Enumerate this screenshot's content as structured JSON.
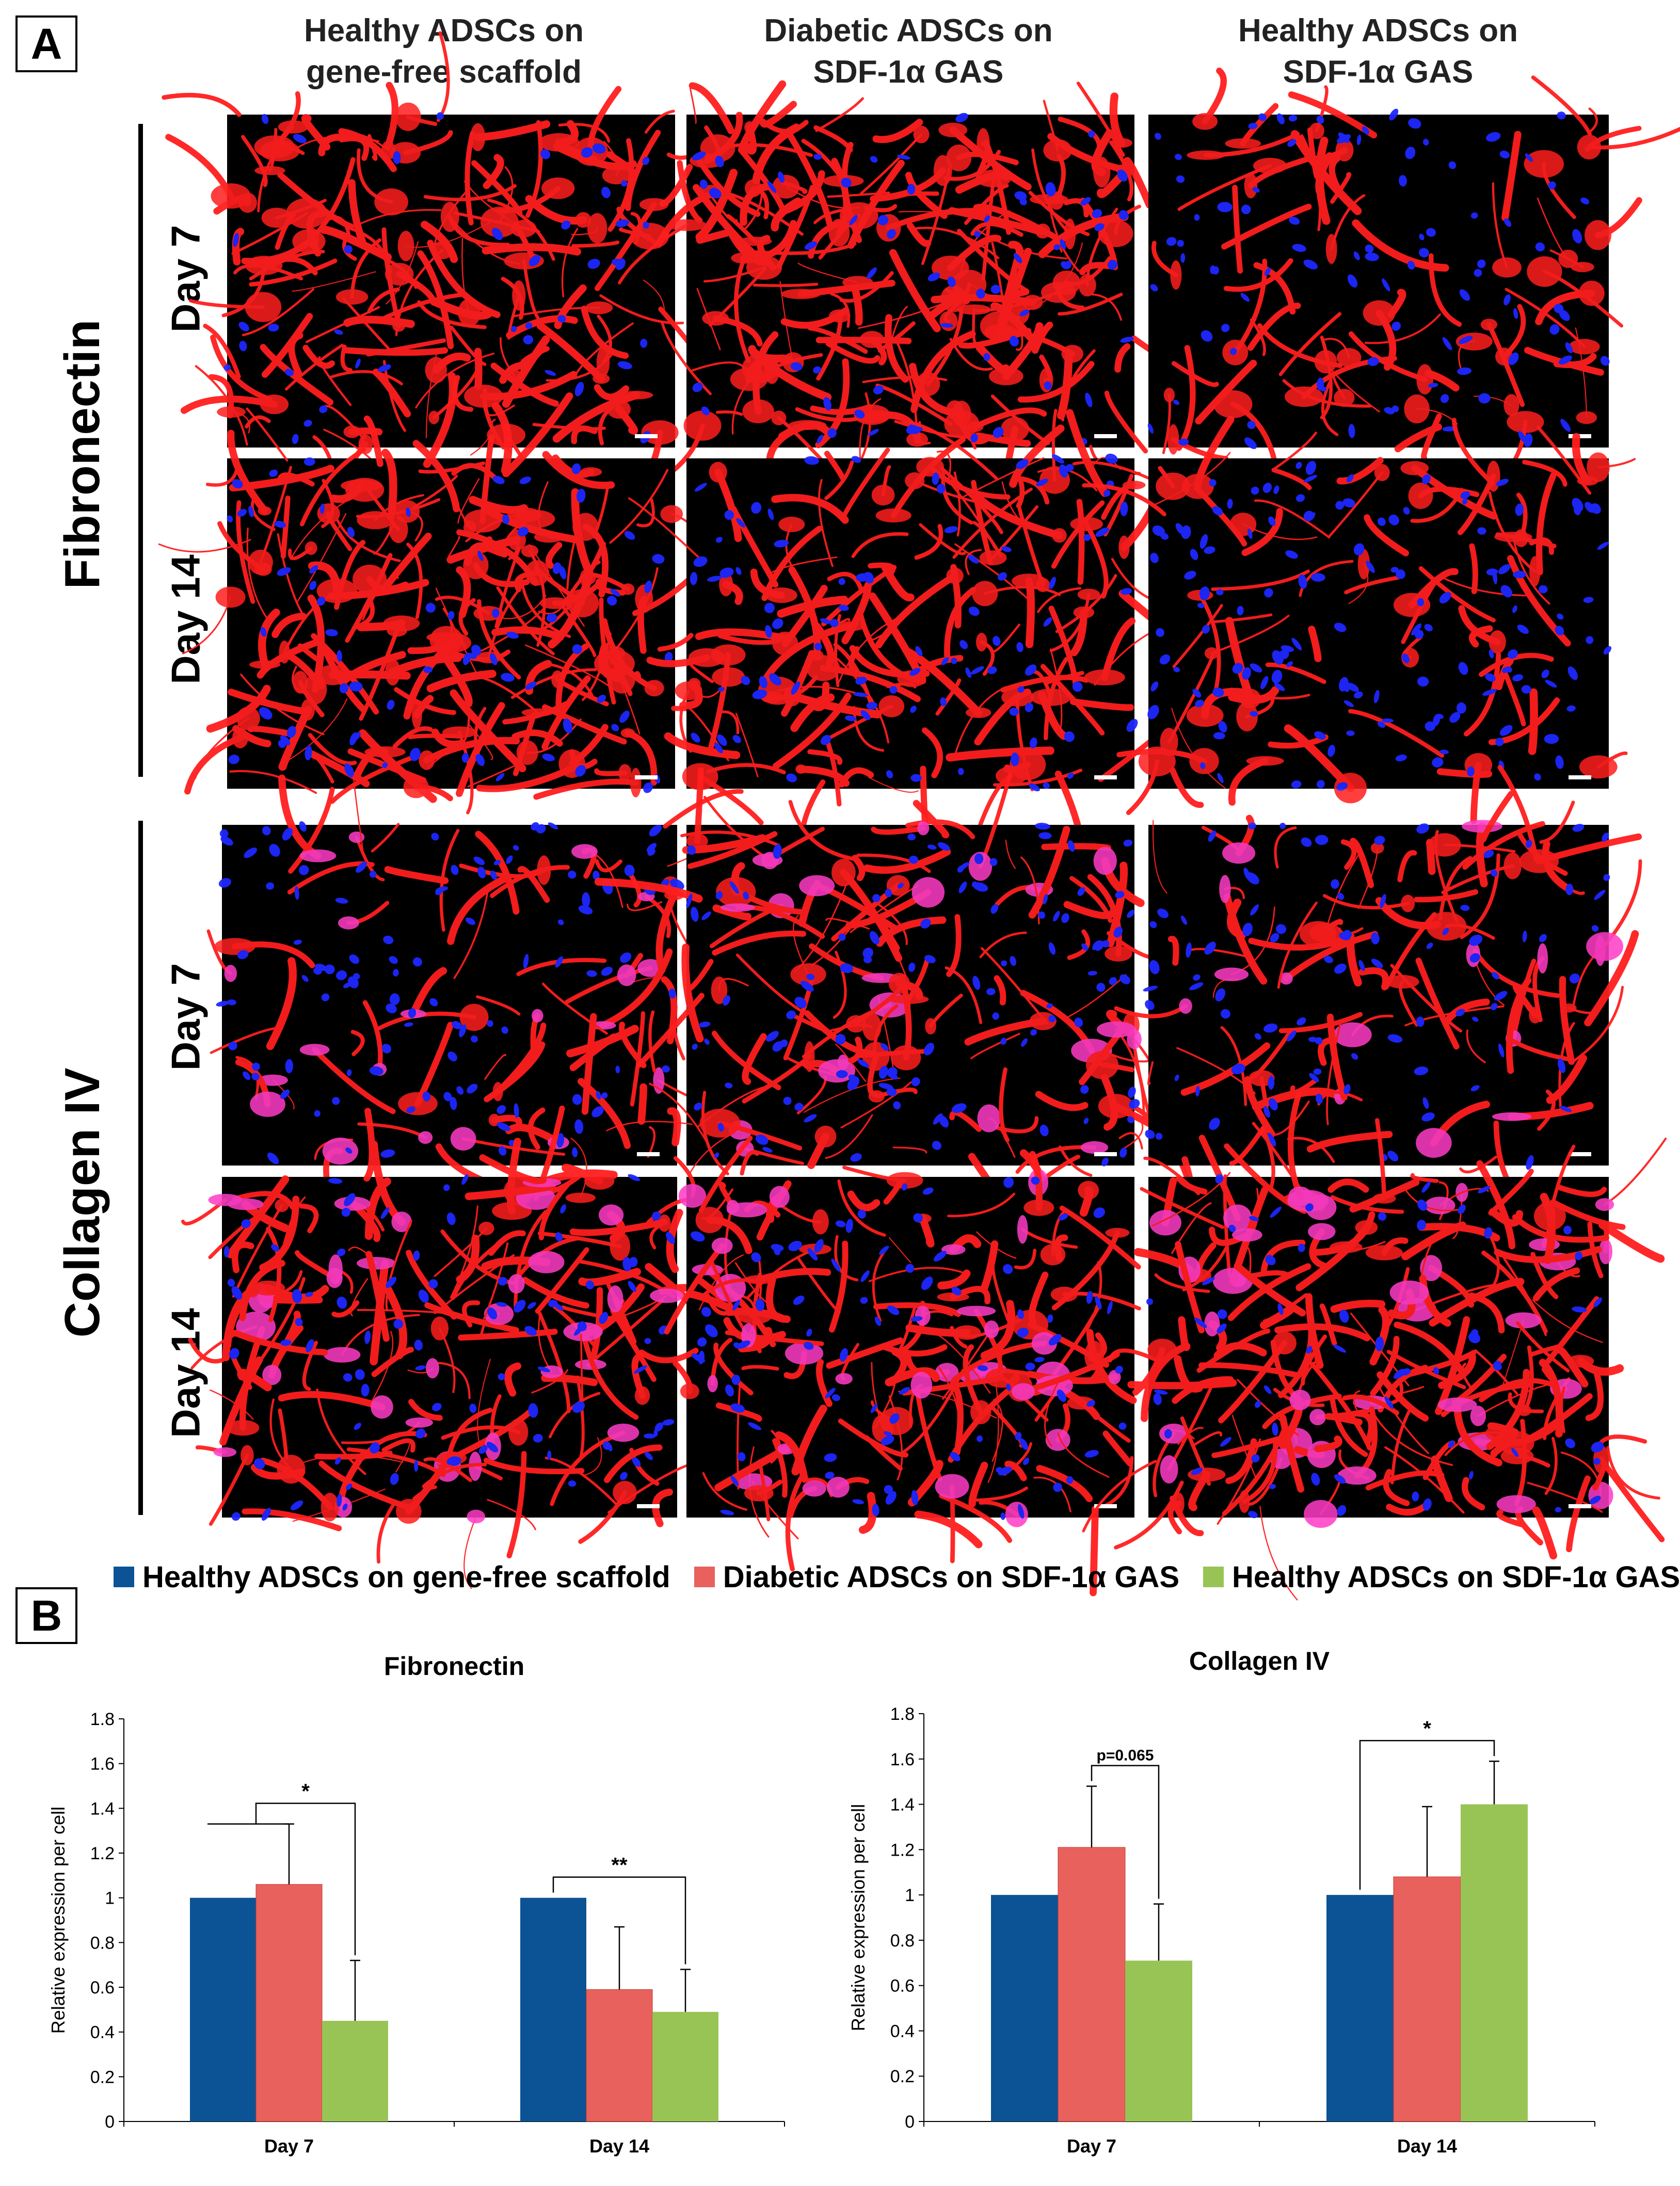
{
  "panel_a": {
    "letter": "A",
    "columns": [
      {
        "line1": "Healthy ADSCs on",
        "line2": "gene-free scaffold"
      },
      {
        "line1": "Diabetic ADSCs on",
        "line2": "SDF-1α GAS"
      },
      {
        "line1": "Healthy ADSCs on",
        "line2": "SDF-1α GAS"
      }
    ],
    "groups": [
      {
        "name": "Fibronectin",
        "rows": [
          "Day 7",
          "Day 14"
        ]
      },
      {
        "name": "Collagen IV",
        "rows": [
          "Day 7",
          "Day 14"
        ]
      }
    ],
    "colors": {
      "stain_red": "#ff1e1e",
      "stain_magenta": "#ff3cc8",
      "nuclei_blue": "#1e28ff",
      "background": "#000000"
    }
  },
  "panel_b": {
    "letter": "B",
    "legend": [
      {
        "label": "Healthy ADSCs on gene-free scaffold",
        "color": "#0b5394"
      },
      {
        "label": "Diabetic ADSCs on SDF-1α GAS",
        "color": "#e8615d"
      },
      {
        "label": "Healthy ADSCs on SDF-1α GAS",
        "color": "#98c455"
      }
    ]
  },
  "chart_data": [
    {
      "type": "bar",
      "title": "Fibronectin",
      "ylabel": "Relative expression per cell",
      "xlabel": "",
      "categories": [
        "Day 7",
        "Day 14"
      ],
      "ylim": [
        0,
        1.8
      ],
      "yticks": [
        "0",
        "0.2",
        "0.4",
        "0.6",
        "0.8",
        "1",
        "1.2",
        "1.4",
        "1.6",
        "1.8"
      ],
      "series": [
        {
          "name": "Healthy ADSCs on gene-free scaffold",
          "color": "#0b5394",
          "values": [
            1.0,
            1.0
          ],
          "error": [
            0.0,
            0.0
          ]
        },
        {
          "name": "Diabetic ADSCs on SDF-1α GAS",
          "color": "#e8615d",
          "values": [
            1.06,
            0.59
          ],
          "error": [
            0.27,
            0.28
          ]
        },
        {
          "name": "Healthy ADSCs on SDF-1α GAS",
          "color": "#98c455",
          "values": [
            0.45,
            0.49
          ],
          "error": [
            0.27,
            0.19
          ]
        }
      ],
      "annotations": [
        {
          "label": "*",
          "category": 0,
          "from": "series 0-1",
          "to": 2
        },
        {
          "label": "**",
          "category": 1,
          "from": 0,
          "to": 2
        }
      ]
    },
    {
      "type": "bar",
      "title": "Collagen IV",
      "ylabel": "Relative expression per cell",
      "xlabel": "",
      "categories": [
        "Day 7",
        "Day 14"
      ],
      "ylim": [
        0,
        1.8
      ],
      "yticks": [
        "0",
        "0.2",
        "0.4",
        "0.6",
        "0.8",
        "1",
        "1.2",
        "1.4",
        "1.6",
        "1.8"
      ],
      "series": [
        {
          "name": "Healthy ADSCs on gene-free scaffold",
          "color": "#0b5394",
          "values": [
            1.0,
            1.0
          ],
          "error": [
            0.0,
            0.0
          ]
        },
        {
          "name": "Diabetic ADSCs on SDF-1α GAS",
          "color": "#e8615d",
          "values": [
            1.21,
            1.08
          ],
          "error": [
            0.27,
            0.31
          ]
        },
        {
          "name": "Healthy ADSCs on SDF-1α GAS",
          "color": "#98c455",
          "values": [
            0.71,
            1.4
          ],
          "error": [
            0.25,
            0.19
          ]
        }
      ],
      "annotations": [
        {
          "label": "p=0.065",
          "category": 0,
          "from": 1,
          "to": 2
        },
        {
          "label": "*",
          "category": 1,
          "from": 0,
          "to": 2
        }
      ]
    }
  ]
}
